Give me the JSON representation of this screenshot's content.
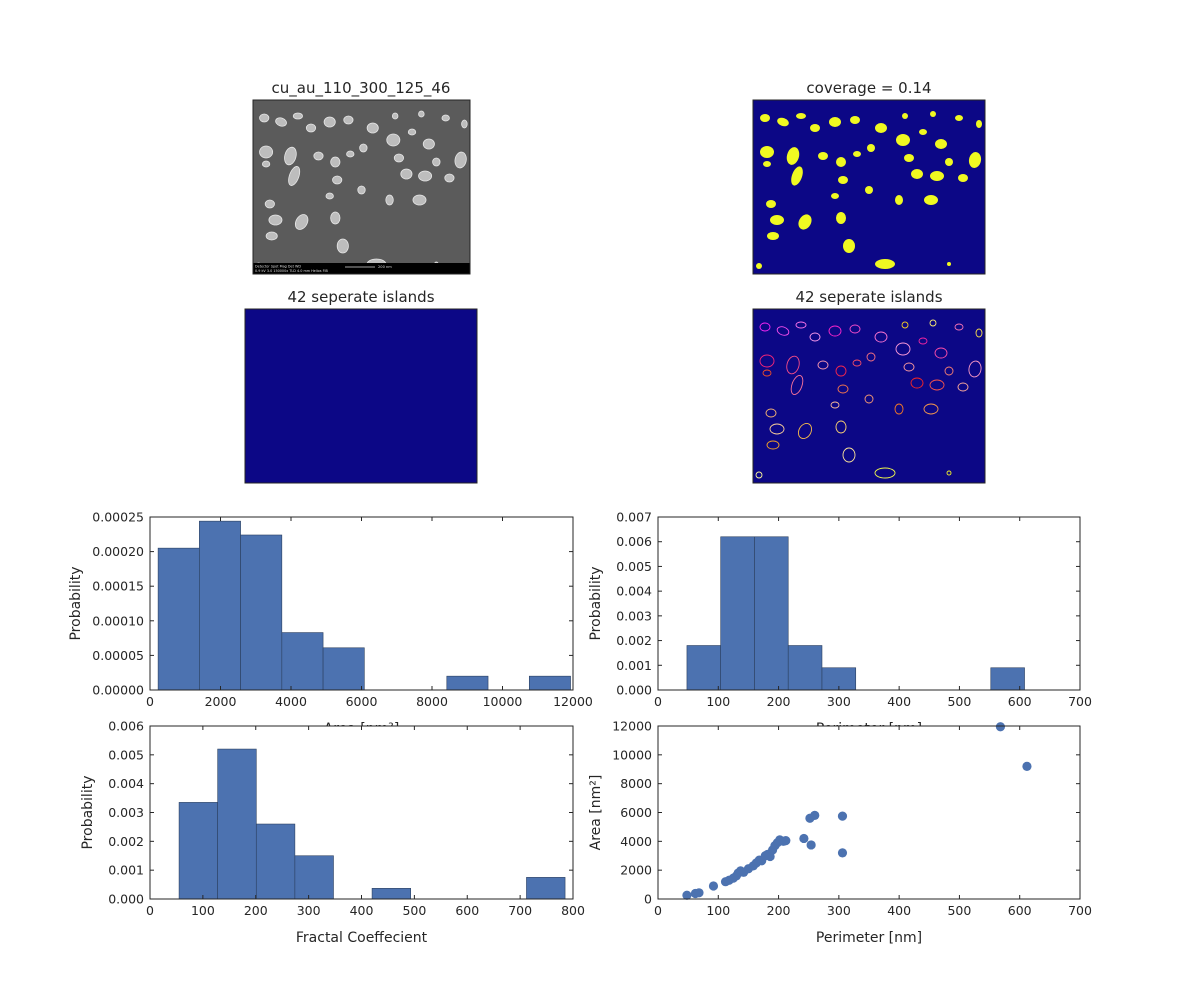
{
  "figure": {
    "panel_titles": {
      "sem_image": "cu_au_110_300_125_46",
      "mask": "coverage = 0.14",
      "islands_left": "42 seperate islands",
      "islands_right": "42 seperate islands"
    },
    "sem_scalebar_text": [
      "Detector  Spot  Mag    Det  WD",
      "0.9 kV  3.0  150000x  TLD  4.0 mm   Helios FIB",
      "200 nm"
    ],
    "colors": {
      "bar": "#4c72b0",
      "bar_edge": "#2b3f5f",
      "image_bg": "#0c0786",
      "mask_fg": "#f0f921",
      "sem_bg": "#5b5b5b"
    }
  },
  "chart_data": [
    {
      "type": "bar",
      "title": "",
      "xlabel": "Area [nm²]",
      "ylabel": "Probability",
      "xlim": [
        0,
        12000
      ],
      "ylim": [
        0,
        0.00025
      ],
      "xticks": [
        "0",
        "2000",
        "4000",
        "6000",
        "8000",
        "10000",
        "12000"
      ],
      "yticks": [
        "0.00000",
        "0.00005",
        "0.00010",
        "0.00015",
        "0.00020",
        "0.00025"
      ],
      "bin_edges": [
        230,
        1400,
        2570,
        3740,
        4910,
        6080,
        7250,
        8420,
        9590,
        10760,
        11930
      ],
      "values": [
        0.000205,
        0.000244,
        0.000224,
        8.3e-05,
        6.1e-05,
        0,
        0,
        2e-05,
        0,
        2e-05
      ]
    },
    {
      "type": "bar",
      "title": "",
      "xlabel": "Perimeter [nm]",
      "ylabel": "Probability",
      "xlim": [
        0,
        700
      ],
      "ylim": [
        0,
        0.007
      ],
      "xticks": [
        "0",
        "100",
        "200",
        "300",
        "400",
        "500",
        "600",
        "700"
      ],
      "yticks": [
        "0.000",
        "0.001",
        "0.002",
        "0.003",
        "0.004",
        "0.005",
        "0.006",
        "0.007"
      ],
      "bin_edges": [
        48,
        104,
        160,
        216,
        272,
        328,
        384,
        440,
        496,
        552,
        608
      ],
      "values": [
        0.0018,
        0.0062,
        0.0062,
        0.0018,
        0.0009,
        0,
        0,
        0,
        0,
        0.0009
      ]
    },
    {
      "type": "bar",
      "title": "",
      "xlabel": "Fractal Coeffecient",
      "ylabel": "Probability",
      "xlim": [
        0,
        800
      ],
      "ylim": [
        0,
        0.006
      ],
      "xticks": [
        "0",
        "100",
        "200",
        "300",
        "400",
        "500",
        "600",
        "700",
        "800"
      ],
      "yticks": [
        "0.000",
        "0.001",
        "0.002",
        "0.003",
        "0.004",
        "0.005",
        "0.006"
      ],
      "bin_edges": [
        55,
        128,
        201,
        274,
        347,
        420,
        493,
        566,
        639,
        712,
        785
      ],
      "values": [
        0.00335,
        0.0052,
        0.0026,
        0.0015,
        0,
        0.00037,
        0,
        0,
        0,
        0.00075
      ]
    },
    {
      "type": "scatter",
      "title": "",
      "xlabel": "Perimeter [nm]",
      "ylabel": "Area [nm²]",
      "xlim": [
        0,
        700
      ],
      "ylim": [
        0,
        12000
      ],
      "xticks": [
        "0",
        "100",
        "200",
        "300",
        "400",
        "500",
        "600",
        "700"
      ],
      "yticks": [
        "0",
        "2000",
        "4000",
        "6000",
        "8000",
        "10000",
        "12000"
      ],
      "points": [
        [
          48,
          260
        ],
        [
          62,
          380
        ],
        [
          68,
          430
        ],
        [
          92,
          900
        ],
        [
          112,
          1200
        ],
        [
          118,
          1300
        ],
        [
          125,
          1450
        ],
        [
          130,
          1600
        ],
        [
          133,
          1800
        ],
        [
          137,
          1950
        ],
        [
          142,
          1850
        ],
        [
          150,
          2100
        ],
        [
          158,
          2300
        ],
        [
          163,
          2500
        ],
        [
          168,
          2700
        ],
        [
          172,
          2650
        ],
        [
          178,
          3000
        ],
        [
          182,
          3100
        ],
        [
          186,
          2950
        ],
        [
          190,
          3400
        ],
        [
          194,
          3700
        ],
        [
          198,
          3900
        ],
        [
          202,
          4100
        ],
        [
          208,
          4000
        ],
        [
          212,
          4050
        ],
        [
          242,
          4200
        ],
        [
          252,
          5600
        ],
        [
          254,
          3750
        ],
        [
          260,
          5800
        ],
        [
          306,
          3200
        ],
        [
          306,
          5750
        ],
        [
          568,
          11950
        ],
        [
          612,
          9200
        ]
      ]
    }
  ]
}
